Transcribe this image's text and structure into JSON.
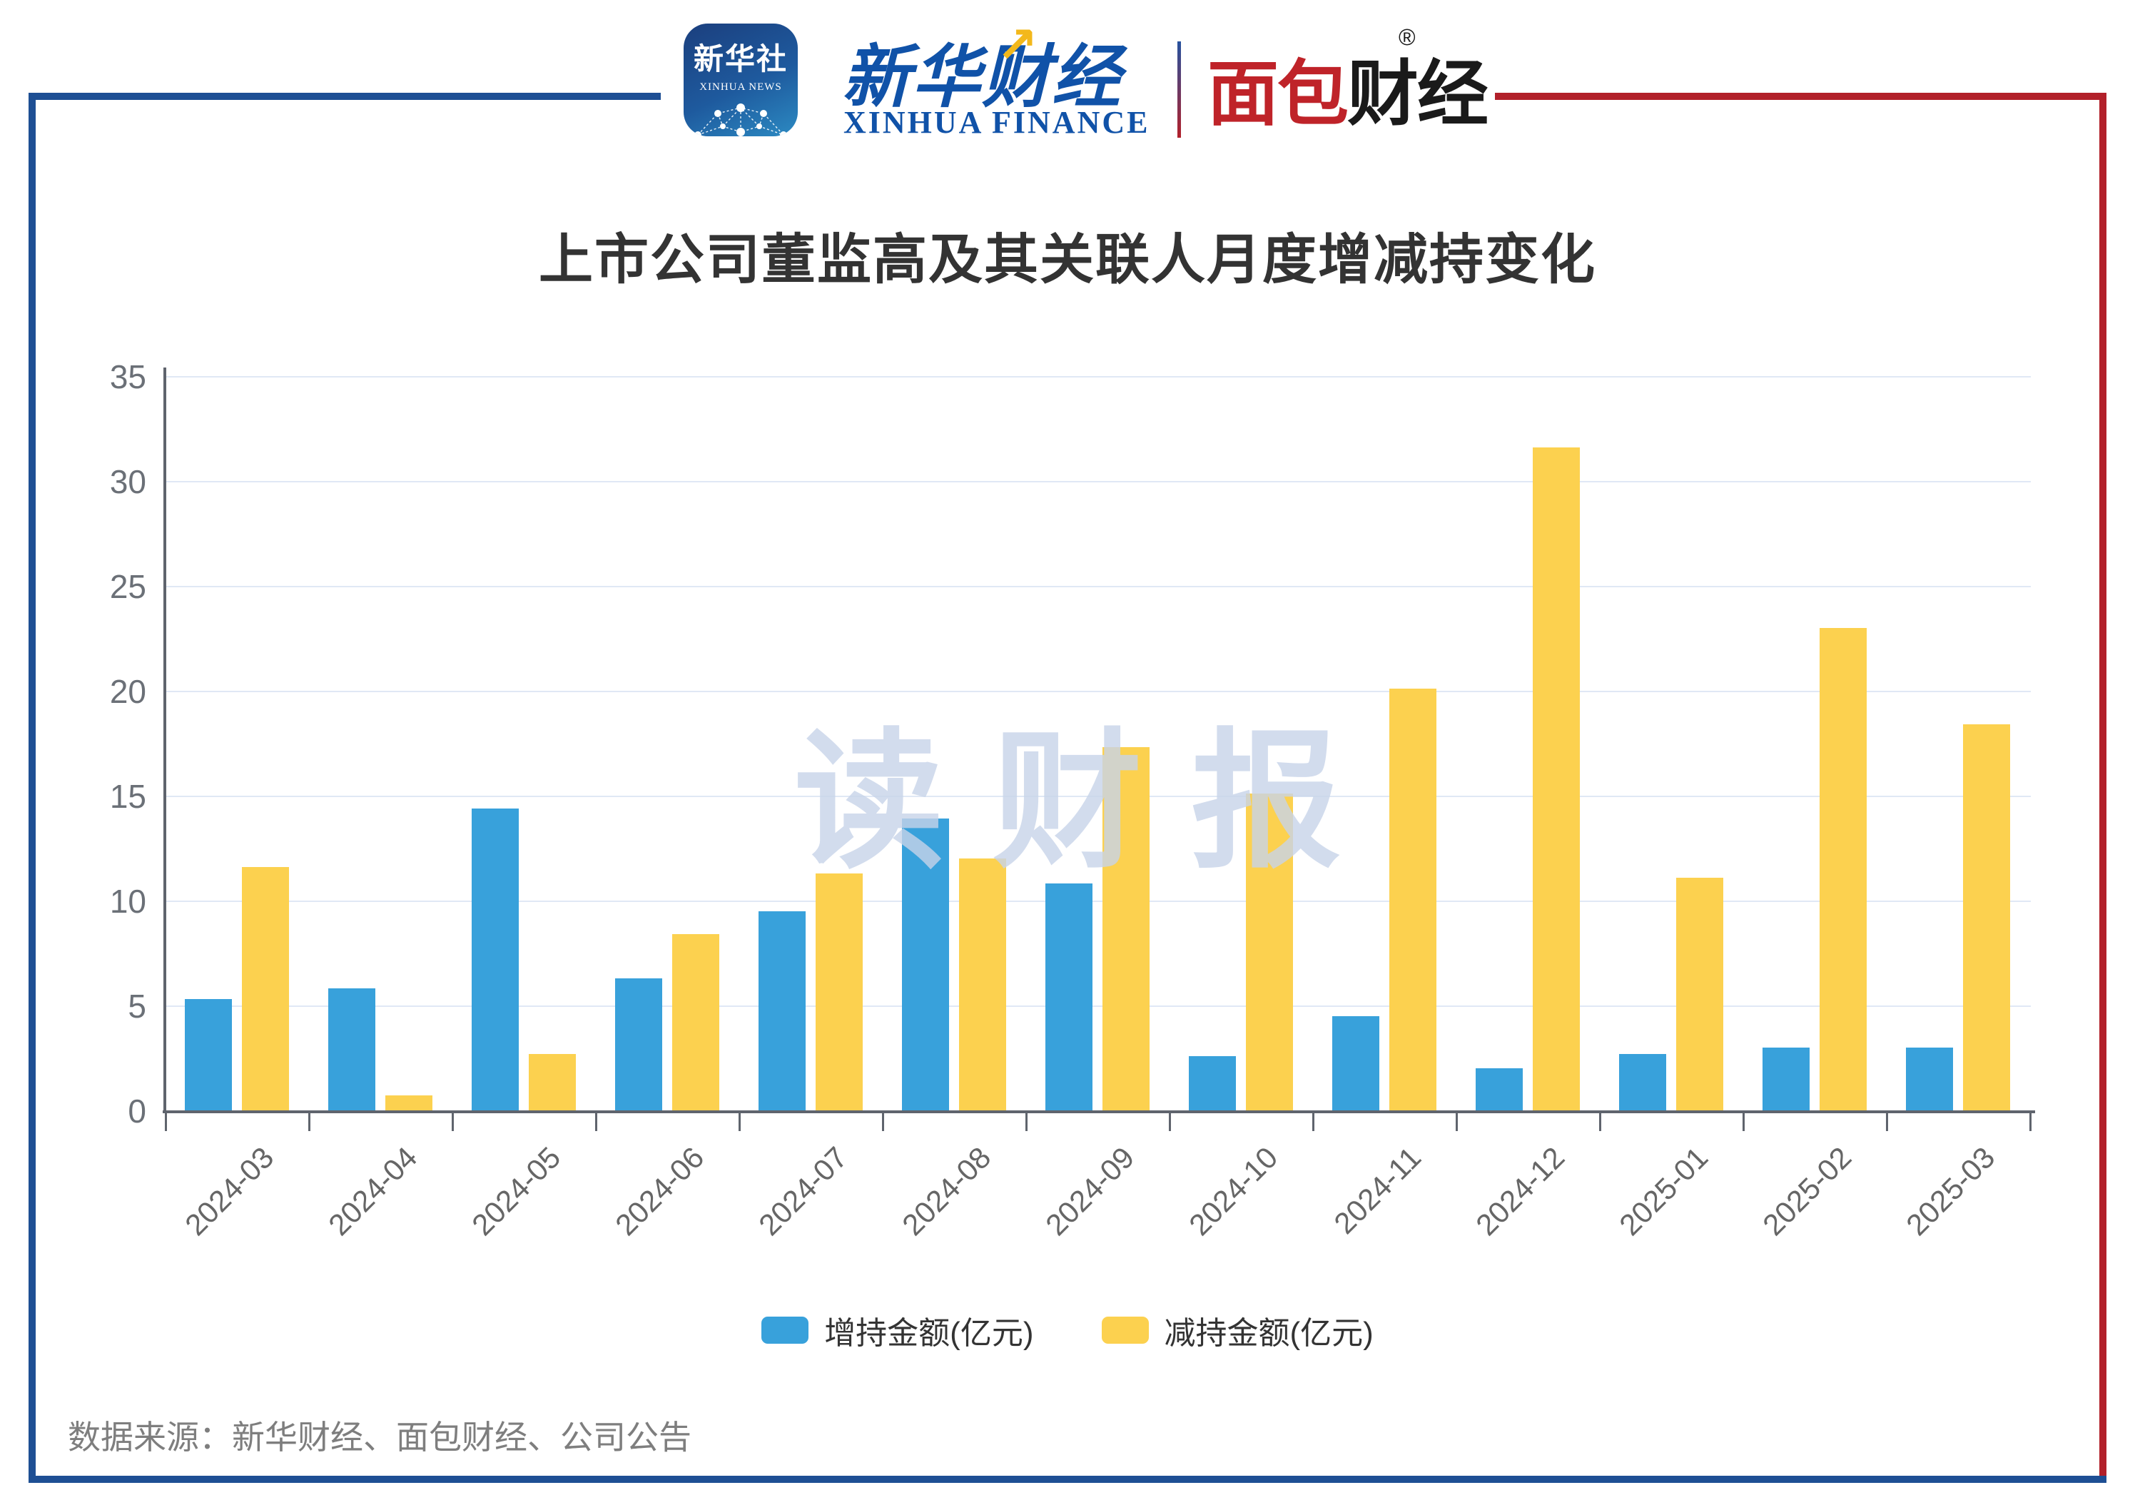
{
  "header": {
    "xinhua_icon": {
      "title": "新华社",
      "subtitle": "XINHUA NEWS"
    },
    "xinhua_finance": {
      "cn": "新华财经",
      "en": "XINHUA FINANCE",
      "arrow": "↗"
    },
    "mianbao_logo": {
      "red": "面包",
      "black": "财经",
      "reg": "®"
    }
  },
  "chart_data": {
    "type": "bar",
    "title": "上市公司董监高及其关联人月度增减持变化",
    "categories": [
      "2024-03",
      "2024-04",
      "2024-05",
      "2024-06",
      "2024-07",
      "2024-08",
      "2024-09",
      "2024-10",
      "2024-11",
      "2024-12",
      "2025-01",
      "2025-02",
      "2025-03"
    ],
    "series": [
      {
        "name": "增持金额(亿元)",
        "color": "#38a1db",
        "values": [
          5.3,
          5.8,
          14.4,
          6.3,
          9.5,
          13.9,
          10.8,
          2.6,
          4.5,
          2.0,
          2.7,
          3.0,
          3.0
        ]
      },
      {
        "name": "减持金额(亿元)",
        "color": "#fcd14f",
        "values": [
          11.6,
          0.7,
          2.7,
          8.4,
          11.3,
          12.0,
          17.3,
          15.1,
          20.1,
          31.6,
          11.1,
          23.0,
          18.4
        ]
      }
    ],
    "xlabel": "",
    "ylabel": "",
    "ylim": [
      0,
      35
    ],
    "yticks": [
      0,
      5,
      10,
      15,
      20,
      25,
      30,
      35
    ],
    "grid": true,
    "legend_position": "bottom"
  },
  "watermark": {
    "text": "读财报"
  },
  "source": {
    "text": "数据来源：新华财经、面包财经、公司公告"
  },
  "colors": {
    "frame_blue": "#1e4f94",
    "frame_red": "#b2202a",
    "gridline": "#e0e8f5",
    "axis": "#5f646d",
    "bar_increase": "#38a1db",
    "bar_decrease": "#fcd14f"
  }
}
